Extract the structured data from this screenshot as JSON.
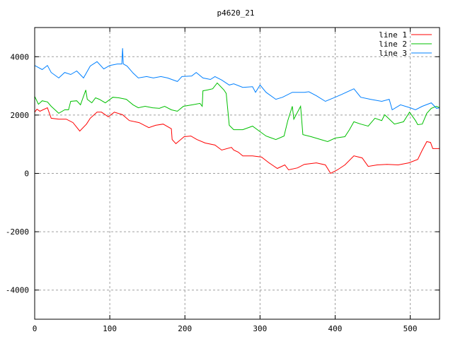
{
  "chart_data": {
    "type": "line",
    "title": "p4620_21",
    "xlabel": "",
    "ylabel": "",
    "xlim": [
      0,
      539
    ],
    "ylim": [
      -5000,
      5000
    ],
    "xticks": [
      0,
      100,
      200,
      300,
      400,
      500
    ],
    "yticks": [
      -4000,
      -2000,
      0,
      2000,
      4000
    ],
    "grid": true,
    "legend_position": "top-right",
    "series": [
      {
        "name": "line 1",
        "color": "#ff0000",
        "points": [
          [
            0,
            2100
          ],
          [
            3,
            2200
          ],
          [
            7,
            2130
          ],
          [
            17,
            2250
          ],
          [
            22,
            1890
          ],
          [
            32,
            1860
          ],
          [
            42,
            1860
          ],
          [
            51,
            1740
          ],
          [
            60,
            1450
          ],
          [
            69,
            1690
          ],
          [
            74,
            1890
          ],
          [
            83,
            2100
          ],
          [
            89,
            2100
          ],
          [
            98,
            1940
          ],
          [
            106,
            2100
          ],
          [
            117,
            2010
          ],
          [
            126,
            1810
          ],
          [
            139,
            1740
          ],
          [
            152,
            1570
          ],
          [
            161,
            1650
          ],
          [
            171,
            1690
          ],
          [
            182,
            1530
          ],
          [
            183,
            1160
          ],
          [
            188,
            1020
          ],
          [
            199,
            1260
          ],
          [
            208,
            1280
          ],
          [
            216,
            1160
          ],
          [
            227,
            1040
          ],
          [
            240,
            970
          ],
          [
            249,
            800
          ],
          [
            262,
            890
          ],
          [
            265,
            800
          ],
          [
            271,
            730
          ],
          [
            277,
            600
          ],
          [
            290,
            600
          ],
          [
            302,
            560
          ],
          [
            312,
            360
          ],
          [
            323,
            170
          ],
          [
            333,
            290
          ],
          [
            338,
            120
          ],
          [
            350,
            190
          ],
          [
            359,
            310
          ],
          [
            375,
            360
          ],
          [
            387,
            290
          ],
          [
            394,
            0
          ],
          [
            403,
            120
          ],
          [
            413,
            290
          ],
          [
            425,
            600
          ],
          [
            436,
            530
          ],
          [
            444,
            240
          ],
          [
            456,
            290
          ],
          [
            469,
            310
          ],
          [
            484,
            290
          ],
          [
            498,
            360
          ],
          [
            510,
            480
          ],
          [
            516,
            800
          ],
          [
            522,
            1090
          ],
          [
            527,
            1060
          ],
          [
            530,
            850
          ],
          [
            539,
            850
          ]
        ]
      },
      {
        "name": "line 2",
        "color": "#00c000",
        "points": [
          [
            0,
            2640
          ],
          [
            5,
            2370
          ],
          [
            10,
            2490
          ],
          [
            17,
            2450
          ],
          [
            22,
            2300
          ],
          [
            32,
            2060
          ],
          [
            40,
            2180
          ],
          [
            45,
            2180
          ],
          [
            48,
            2470
          ],
          [
            56,
            2490
          ],
          [
            61,
            2350
          ],
          [
            68,
            2860
          ],
          [
            70,
            2540
          ],
          [
            76,
            2420
          ],
          [
            81,
            2590
          ],
          [
            86,
            2540
          ],
          [
            94,
            2420
          ],
          [
            104,
            2610
          ],
          [
            112,
            2590
          ],
          [
            122,
            2540
          ],
          [
            131,
            2350
          ],
          [
            138,
            2250
          ],
          [
            147,
            2300
          ],
          [
            157,
            2250
          ],
          [
            166,
            2230
          ],
          [
            173,
            2300
          ],
          [
            182,
            2180
          ],
          [
            190,
            2130
          ],
          [
            198,
            2300
          ],
          [
            210,
            2350
          ],
          [
            220,
            2400
          ],
          [
            223,
            2300
          ],
          [
            224,
            2830
          ],
          [
            230,
            2860
          ],
          [
            237,
            2900
          ],
          [
            243,
            3100
          ],
          [
            252,
            2860
          ],
          [
            255,
            2740
          ],
          [
            259,
            1650
          ],
          [
            265,
            1500
          ],
          [
            277,
            1500
          ],
          [
            290,
            1620
          ],
          [
            299,
            1450
          ],
          [
            308,
            1280
          ],
          [
            321,
            1160
          ],
          [
            332,
            1280
          ],
          [
            337,
            1810
          ],
          [
            343,
            2300
          ],
          [
            345,
            1860
          ],
          [
            354,
            2300
          ],
          [
            357,
            1330
          ],
          [
            368,
            1260
          ],
          [
            381,
            1160
          ],
          [
            390,
            1090
          ],
          [
            400,
            1210
          ],
          [
            413,
            1260
          ],
          [
            419,
            1500
          ],
          [
            425,
            1770
          ],
          [
            434,
            1690
          ],
          [
            444,
            1620
          ],
          [
            453,
            1890
          ],
          [
            462,
            1810
          ],
          [
            466,
            2010
          ],
          [
            479,
            1690
          ],
          [
            491,
            1770
          ],
          [
            499,
            2100
          ],
          [
            507,
            1810
          ],
          [
            510,
            1670
          ],
          [
            516,
            1690
          ],
          [
            522,
            2060
          ],
          [
            528,
            2230
          ],
          [
            535,
            2300
          ],
          [
            539,
            2250
          ]
        ]
      },
      {
        "name": "line 3",
        "color": "#0080ff",
        "points": [
          [
            0,
            3700
          ],
          [
            10,
            3560
          ],
          [
            17,
            3700
          ],
          [
            22,
            3460
          ],
          [
            32,
            3270
          ],
          [
            40,
            3460
          ],
          [
            48,
            3390
          ],
          [
            56,
            3510
          ],
          [
            65,
            3270
          ],
          [
            74,
            3680
          ],
          [
            83,
            3830
          ],
          [
            92,
            3580
          ],
          [
            100,
            3700
          ],
          [
            110,
            3750
          ],
          [
            116,
            3750
          ],
          [
            117,
            4290
          ],
          [
            118,
            3750
          ],
          [
            123,
            3680
          ],
          [
            131,
            3440
          ],
          [
            138,
            3270
          ],
          [
            149,
            3320
          ],
          [
            158,
            3270
          ],
          [
            168,
            3320
          ],
          [
            177,
            3270
          ],
          [
            190,
            3150
          ],
          [
            196,
            3320
          ],
          [
            209,
            3340
          ],
          [
            215,
            3460
          ],
          [
            224,
            3270
          ],
          [
            234,
            3220
          ],
          [
            240,
            3320
          ],
          [
            249,
            3200
          ],
          [
            259,
            3030
          ],
          [
            265,
            3070
          ],
          [
            277,
            2950
          ],
          [
            290,
            2970
          ],
          [
            294,
            2780
          ],
          [
            300,
            3030
          ],
          [
            308,
            2780
          ],
          [
            321,
            2540
          ],
          [
            330,
            2610
          ],
          [
            343,
            2780
          ],
          [
            359,
            2780
          ],
          [
            365,
            2800
          ],
          [
            375,
            2660
          ],
          [
            387,
            2470
          ],
          [
            400,
            2610
          ],
          [
            409,
            2710
          ],
          [
            425,
            2900
          ],
          [
            434,
            2610
          ],
          [
            447,
            2540
          ],
          [
            462,
            2470
          ],
          [
            472,
            2540
          ],
          [
            476,
            2180
          ],
          [
            487,
            2350
          ],
          [
            500,
            2250
          ],
          [
            507,
            2180
          ],
          [
            516,
            2300
          ],
          [
            528,
            2420
          ],
          [
            535,
            2230
          ],
          [
            539,
            2250
          ]
        ]
      }
    ]
  }
}
